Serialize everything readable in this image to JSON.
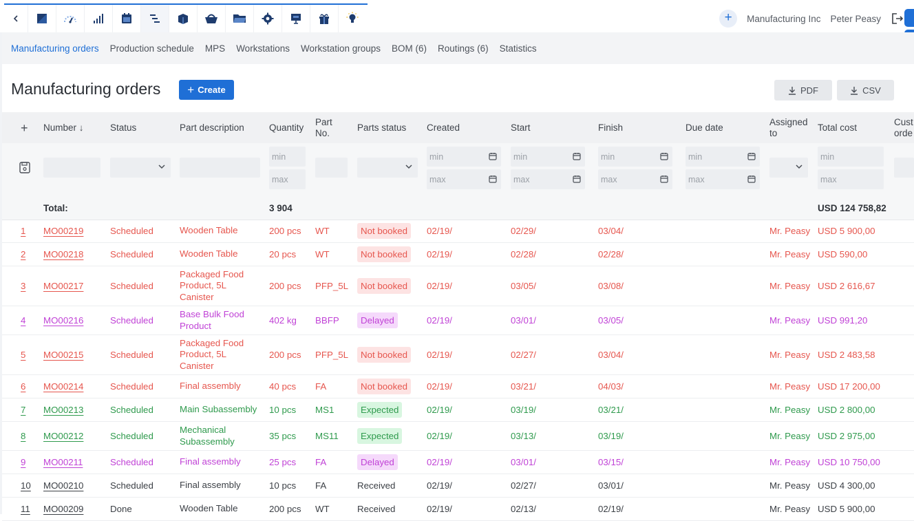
{
  "topbar": {
    "modules": [
      "back-icon",
      "book-icon",
      "dashboard-icon",
      "bar-chart-icon",
      "calendar-icon",
      "manufacturing-icon",
      "stock-icon",
      "basket-icon",
      "folder-icon",
      "gear-icon",
      "presentation-icon",
      "gift-icon",
      "idea-icon"
    ],
    "active_module": "manufacturing-icon",
    "company": "Manufacturing Inc",
    "user": "Peter Peasy"
  },
  "subnav": {
    "items": [
      {
        "label": "Manufacturing orders",
        "active": true
      },
      {
        "label": "Production schedule",
        "active": false
      },
      {
        "label": "MPS",
        "active": false
      },
      {
        "label": "Workstations",
        "active": false
      },
      {
        "label": "Workstation groups",
        "active": false
      },
      {
        "label": "BOM (6)",
        "active": false
      },
      {
        "label": "Routings (6)",
        "active": false
      },
      {
        "label": "Statistics",
        "active": false
      }
    ]
  },
  "page": {
    "title": "Manufacturing orders",
    "create_label": "Create",
    "pdf_label": "PDF",
    "csv_label": "CSV"
  },
  "table": {
    "headers": {
      "add": "+",
      "number": "Number ↓",
      "status": "Status",
      "part_description": "Part description",
      "quantity": "Quantity",
      "part_no": "Part No.",
      "parts_status": "Parts status",
      "created": "Created",
      "start": "Start",
      "finish": "Finish",
      "due_date": "Due date",
      "assigned_to": "Assigned to",
      "total_cost": "Total cost",
      "customer_order": "Cust orde"
    },
    "filters": {
      "min": "min",
      "max": "max"
    },
    "totals": {
      "label": "Total:",
      "quantity": "3 904",
      "total_cost": "USD 124 758,82"
    },
    "rows": [
      {
        "idx": "1",
        "number": "MO00219",
        "status": "Scheduled",
        "part": "Wooden Table",
        "qty": "200 pcs",
        "part_no": "WT",
        "parts_status": "Not booked",
        "created": "02/19/",
        "start": "02/29/",
        "finish": "03/04/",
        "assigned": "Mr. Peasy",
        "cost": "USD 5 900,00",
        "color": "red"
      },
      {
        "idx": "2",
        "number": "MO00218",
        "status": "Scheduled",
        "part": "Wooden Table",
        "qty": "20 pcs",
        "part_no": "WT",
        "parts_status": "Not booked",
        "created": "02/19/",
        "start": "02/28/",
        "finish": "02/28/",
        "assigned": "Mr. Peasy",
        "cost": "USD 590,00",
        "color": "red"
      },
      {
        "idx": "3",
        "number": "MO00217",
        "status": "Scheduled",
        "part": "Packaged Food Product, 5L Canister",
        "qty": "200 pcs",
        "part_no": "PFP_5L",
        "parts_status": "Not booked",
        "created": "02/19/",
        "start": "03/05/",
        "finish": "03/08/",
        "assigned": "Mr. Peasy",
        "cost": "USD 2 616,67",
        "color": "red"
      },
      {
        "idx": "4",
        "number": "MO00216",
        "status": "Scheduled",
        "part": "Base Bulk Food Product",
        "qty": "402 kg",
        "part_no": "BBFP",
        "parts_status": "Delayed",
        "created": "02/19/",
        "start": "03/01/",
        "finish": "03/05/",
        "assigned": "Mr. Peasy",
        "cost": "USD 991,20",
        "color": "purple"
      },
      {
        "idx": "5",
        "number": "MO00215",
        "status": "Scheduled",
        "part": "Packaged Food Product, 5L Canister",
        "qty": "200 pcs",
        "part_no": "PFP_5L",
        "parts_status": "Not booked",
        "created": "02/19/",
        "start": "02/27/",
        "finish": "03/04/",
        "assigned": "Mr. Peasy",
        "cost": "USD 2 483,58",
        "color": "red"
      },
      {
        "idx": "6",
        "number": "MO00214",
        "status": "Scheduled",
        "part": "Final assembly",
        "qty": "40 pcs",
        "part_no": "FA",
        "parts_status": "Not booked",
        "created": "02/19/",
        "start": "03/21/",
        "finish": "04/03/",
        "assigned": "Mr. Peasy",
        "cost": "USD 17 200,00",
        "color": "red"
      },
      {
        "idx": "7",
        "number": "MO00213",
        "status": "Scheduled",
        "part": "Main Subassembly",
        "qty": "10 pcs",
        "part_no": "MS1",
        "parts_status": "Expected",
        "created": "02/19/",
        "start": "03/19/",
        "finish": "03/21/",
        "assigned": "Mr. Peasy",
        "cost": "USD 2 800,00",
        "color": "green"
      },
      {
        "idx": "8",
        "number": "MO00212",
        "status": "Scheduled",
        "part": "Mechanical Subassembly",
        "qty": "35 pcs",
        "part_no": "MS11",
        "parts_status": "Expected",
        "created": "02/19/",
        "start": "03/13/",
        "finish": "03/19/",
        "assigned": "Mr. Peasy",
        "cost": "USD 2 975,00",
        "color": "green"
      },
      {
        "idx": "9",
        "number": "MO00211",
        "status": "Scheduled",
        "part": "Final assembly",
        "qty": "25 pcs",
        "part_no": "FA",
        "parts_status": "Delayed",
        "created": "02/19/",
        "start": "03/01/",
        "finish": "03/15/",
        "assigned": "Mr. Peasy",
        "cost": "USD 10 750,00",
        "color": "purple"
      },
      {
        "idx": "10",
        "number": "MO00210",
        "status": "Scheduled",
        "part": "Final assembly",
        "qty": "10 pcs",
        "part_no": "FA",
        "parts_status": "Received",
        "created": "02/19/",
        "start": "02/27/",
        "finish": "03/01/",
        "assigned": "Mr. Peasy",
        "cost": "USD 4 300,00",
        "color": "gray"
      },
      {
        "idx": "11",
        "number": "MO00209",
        "status": "Done",
        "part": "Wooden Table",
        "qty": "200 pcs",
        "part_no": "WT",
        "parts_status": "Received",
        "created": "02/19/",
        "start": "02/13/",
        "finish": "02/19/",
        "assigned": "Mr. Peasy",
        "cost": "USD 5 900,00",
        "color": "gray"
      }
    ]
  },
  "colors": {
    "accent": "#1f6fd6",
    "red": "#e6564e",
    "purple": "#c042d6",
    "green": "#2f9a4d",
    "gray": "#3c4046"
  }
}
